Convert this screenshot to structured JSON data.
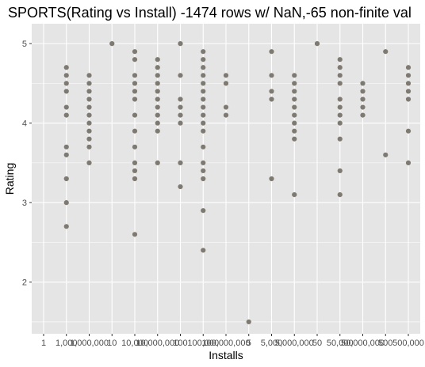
{
  "chart_data": {
    "type": "scatter",
    "title": "SPORTS(Rating vs Install) -1474 rows w/ NaN,-65 non-finite val",
    "xlabel": "Installs",
    "ylabel": "Rating",
    "x_categories": [
      "1",
      "1,000",
      "1,000,000",
      "10",
      "10,000",
      "10,000,000",
      "100",
      "100,000",
      "100,000,000",
      "5",
      "5,000",
      "5,000,000",
      "50",
      "50,000",
      "50,000,000",
      "500",
      "500,000"
    ],
    "ylim": [
      1.35,
      5.25
    ],
    "y_ticks": [
      2,
      3,
      4,
      5
    ],
    "grid": true,
    "point_color": "#7f7a71",
    "panel_background": "#e5e5e5",
    "series": [
      {
        "x": "1,000",
        "y": [
          4.7,
          4.6,
          4.5,
          4.4,
          4.2,
          4.1,
          3.7,
          3.6,
          3.3,
          3.0,
          2.7
        ]
      },
      {
        "x": "1,000,000",
        "y": [
          4.6,
          4.5,
          4.4,
          4.3,
          4.2,
          4.1,
          4.0,
          3.9,
          3.8,
          3.7,
          3.5
        ]
      },
      {
        "x": "10",
        "y": [
          5.0
        ]
      },
      {
        "x": "10,000",
        "y": [
          4.9,
          4.8,
          4.6,
          4.5,
          4.4,
          4.3,
          4.1,
          3.9,
          3.7,
          3.5,
          3.4,
          3.3,
          2.6
        ]
      },
      {
        "x": "10,000,000",
        "y": [
          4.8,
          4.7,
          4.6,
          4.5,
          4.4,
          4.3,
          4.2,
          4.1,
          4.0,
          3.9,
          3.5
        ]
      },
      {
        "x": "100",
        "y": [
          5.0,
          4.6,
          4.3,
          4.2,
          4.1,
          4.0,
          3.5,
          3.2
        ]
      },
      {
        "x": "100,000",
        "y": [
          4.9,
          4.8,
          4.7,
          4.6,
          4.5,
          4.4,
          4.3,
          4.2,
          4.1,
          4.0,
          3.9,
          3.7,
          3.5,
          3.4,
          3.3,
          2.9,
          2.4
        ]
      },
      {
        "x": "100,000,000",
        "y": [
          4.6,
          4.5,
          4.2,
          4.1
        ]
      },
      {
        "x": "5",
        "y": [
          1.5
        ]
      },
      {
        "x": "5,000",
        "y": [
          4.9,
          4.6,
          4.4,
          4.3,
          3.3
        ]
      },
      {
        "x": "5,000,000",
        "y": [
          4.6,
          4.5,
          4.4,
          4.3,
          4.2,
          4.1,
          4.0,
          3.9,
          3.8,
          3.1
        ]
      },
      {
        "x": "50",
        "y": [
          5.0
        ]
      },
      {
        "x": "50,000",
        "y": [
          4.8,
          4.7,
          4.6,
          4.5,
          4.3,
          4.2,
          4.1,
          4.0,
          3.8,
          3.4,
          3.1
        ]
      },
      {
        "x": "50,000,000",
        "y": [
          4.5,
          4.4,
          4.3,
          4.2,
          4.1
        ]
      },
      {
        "x": "500",
        "y": [
          4.9,
          3.6
        ]
      },
      {
        "x": "500,000",
        "y": [
          4.7,
          4.6,
          4.5,
          4.4,
          4.3,
          3.9,
          3.5
        ]
      }
    ]
  }
}
